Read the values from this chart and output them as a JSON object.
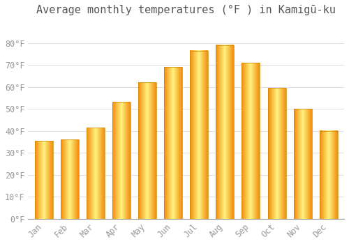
{
  "title": "Average monthly temperatures (°F ) in Kamigū-ku",
  "months": [
    "Jan",
    "Feb",
    "Mar",
    "Apr",
    "May",
    "Jun",
    "Jul",
    "Aug",
    "Sep",
    "Oct",
    "Nov",
    "Dec"
  ],
  "values": [
    35.5,
    36,
    41.5,
    53,
    62,
    69,
    76.5,
    79,
    71,
    59.5,
    50,
    40
  ],
  "bar_color_top": "#FFA500",
  "bar_color_mid": "#FFD966",
  "background_color": "#FFFFFF",
  "grid_color": "#DDDDDD",
  "ylim": [
    0,
    90
  ],
  "yticks": [
    0,
    10,
    20,
    30,
    40,
    50,
    60,
    70,
    80
  ],
  "title_fontsize": 11,
  "tick_fontsize": 8.5,
  "font_family": "monospace",
  "tick_color": "#999999",
  "title_color": "#555555"
}
